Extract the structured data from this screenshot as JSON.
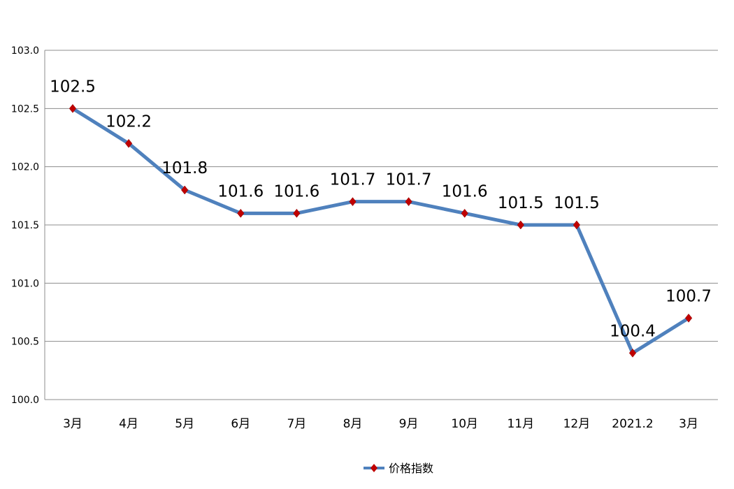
{
  "chart_data": {
    "type": "line",
    "categories": [
      "3月",
      "4月",
      "5月",
      "6月",
      "7月",
      "8月",
      "9月",
      "10月",
      "11月",
      "12月",
      "2021.2",
      "3月"
    ],
    "series": [
      {
        "name": "价格指数",
        "values": [
          102.5,
          102.2,
          101.8,
          101.6,
          101.6,
          101.7,
          101.7,
          101.6,
          101.5,
          101.5,
          100.4,
          100.7
        ],
        "data_labels": [
          "102.5",
          "102.2",
          "101.8",
          "101.6",
          "101.6",
          "101.7",
          "101.7",
          "101.6",
          "101.5",
          "101.5",
          "100.4",
          "100.7"
        ],
        "line_color": "#4f81bd",
        "marker_color": "#c00000",
        "marker": "diamond"
      }
    ],
    "y_ticks": [
      "103.0",
      "102.5",
      "102.0",
      "101.5",
      "101.0",
      "100.5",
      "100.0"
    ],
    "ylim": [
      100.0,
      103.0
    ],
    "grid": true,
    "legend_position": "bottom"
  }
}
